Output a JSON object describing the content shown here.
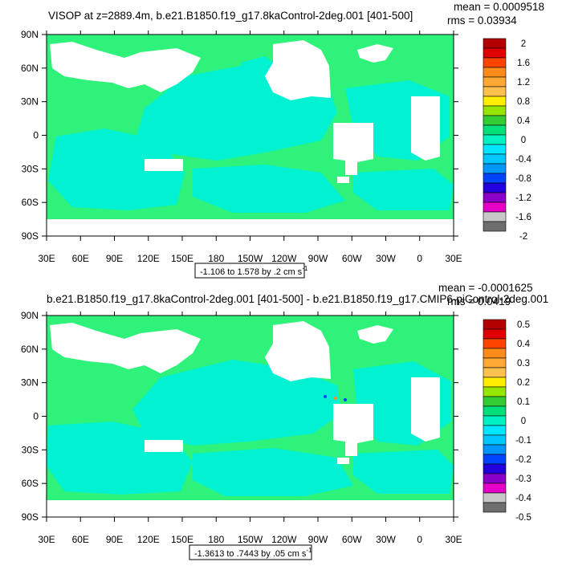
{
  "panels": [
    {
      "title": "VISOP at z=2889.4m, b.e21.B1850.f19_g17.8kaControl-2deg.001 [401-500]",
      "stats": {
        "mean": "mean = 0.0009518",
        "rms": "rms = 0.03934"
      },
      "range_label": {
        "text": "-1.106 to 1.578 by .2 cm s",
        "sup": "-1"
      },
      "colorbar": {
        "labels": [
          "2",
          "1.6",
          "1.2",
          "0.8",
          "0.4",
          "0",
          "-0.4",
          "-0.8",
          "-1.2",
          "-1.6",
          "-2"
        ],
        "colors": [
          "#b30000",
          "#e00000",
          "#ff4400",
          "#ff8c1a",
          "#ffa833",
          "#ffc14d",
          "#ffee00",
          "#96e600",
          "#33cc33",
          "#00e07a",
          "#00f2c2",
          "#00e6ff",
          "#00c8ff",
          "#0096ff",
          "#0044ff",
          "#2200dd",
          "#8b00c8",
          "#e600c8",
          "#c8c8c8",
          "#6e6e6e"
        ]
      }
    },
    {
      "title": "b.e21.B1850.f19_g17.8kaControl-2deg.001 [401-500] - b.e21.B1850.f19_g17.CMIP6-piControl-2deg.001",
      "stats": {
        "mean": "mean = -0.0001625",
        "rms": "rms = 0.0419"
      },
      "range_label": {
        "text": "-1.3613 to .7443 by .05 cm s",
        "sup": "-1"
      },
      "colorbar": {
        "labels": [
          "0.5",
          "0.4",
          "0.3",
          "0.2",
          "0.1",
          "0",
          "-0.1",
          "-0.2",
          "-0.3",
          "-0.4",
          "-0.5"
        ],
        "colors": [
          "#b30000",
          "#e00000",
          "#ff4400",
          "#ff8c1a",
          "#ffa833",
          "#ffc14d",
          "#ffee00",
          "#96e600",
          "#33cc33",
          "#00e07a",
          "#00f2c2",
          "#00e6ff",
          "#00c8ff",
          "#0096ff",
          "#0044ff",
          "#2200dd",
          "#8b00c8",
          "#e600c8",
          "#c8c8c8",
          "#6e6e6e"
        ]
      }
    }
  ],
  "axes": {
    "x_ticks": [
      "30E",
      "60E",
      "90E",
      "120E",
      "150E",
      "180",
      "150W",
      "120W",
      "90W",
      "60W",
      "30W",
      "0",
      "30E"
    ],
    "y_ticks": [
      "90N",
      "60N",
      "30N",
      "0",
      "30S",
      "60S",
      "90S"
    ]
  },
  "colors": {
    "green": "#2ef27a",
    "cyan": "#00f2d2",
    "land": "#ffffff"
  },
  "chart_data": [
    {
      "type": "heatmap",
      "title": "VISOP at z=2889.4m, b.e21.B1850.f19_g17.8kaControl-2deg.001 [401-500]",
      "xlabel": "",
      "ylabel": "",
      "xlim": [
        30,
        390
      ],
      "ylim": [
        -90,
        90
      ],
      "x_tick_labels": [
        "30E",
        "60E",
        "90E",
        "120E",
        "150E",
        "180",
        "150W",
        "120W",
        "90W",
        "60W",
        "30W",
        "0",
        "30E"
      ],
      "y_tick_labels": [
        "90N",
        "60N",
        "30N",
        "0",
        "30S",
        "60S",
        "90S"
      ],
      "value_range": [
        -1.106,
        1.578
      ],
      "contour_interval": 0.2,
      "units": "cm s-1",
      "mean": 0.0009518,
      "rms": 0.03934,
      "colorbar_levels": [
        2,
        1.6,
        1.2,
        0.8,
        0.4,
        0,
        -0.4,
        -0.8,
        -1.2,
        -1.6,
        -2
      ],
      "dominant_classes": [
        "0 to 0.2 (green)",
        "-0.2 to 0 (cyan)"
      ]
    },
    {
      "type": "heatmap",
      "title": "b.e21.B1850.f19_g17.8kaControl-2deg.001 [401-500] - b.e21.B1850.f19_g17.CMIP6-piControl-2deg.001",
      "xlabel": "",
      "ylabel": "",
      "xlim": [
        30,
        390
      ],
      "ylim": [
        -90,
        90
      ],
      "x_tick_labels": [
        "30E",
        "60E",
        "90E",
        "120E",
        "150E",
        "180",
        "150W",
        "120W",
        "90W",
        "60W",
        "30W",
        "0",
        "30E"
      ],
      "y_tick_labels": [
        "90N",
        "60N",
        "30N",
        "0",
        "30S",
        "60S",
        "90S"
      ],
      "value_range": [
        -1.3613,
        0.7443
      ],
      "contour_interval": 0.05,
      "units": "cm s-1",
      "mean": -0.0001625,
      "rms": 0.0419,
      "colorbar_levels": [
        0.5,
        0.4,
        0.3,
        0.2,
        0.1,
        0,
        -0.1,
        -0.2,
        -0.3,
        -0.4,
        -0.5
      ],
      "dominant_classes": [
        "0 to 0.05 (green)",
        "-0.05 to 0 (cyan)"
      ]
    }
  ]
}
